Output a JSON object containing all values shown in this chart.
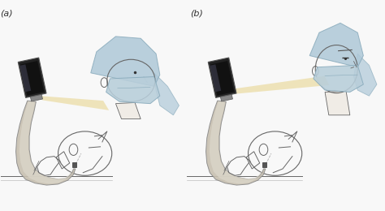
{
  "background_color": "#f8f8f8",
  "label_a": "(a)",
  "label_b": "(b)",
  "label_fontsize": 8,
  "label_color": "#333333",
  "fig_width": 4.74,
  "fig_height": 2.6,
  "dpi": 100,
  "head_cap_color": "#aec8d8",
  "head_cap_edge": "#88aabb",
  "mask_color": "#b8ceda",
  "face_color": "#f0ece6",
  "face_edge": "#888888",
  "beam_color": "#ede0b0",
  "beam_alpha": 0.85,
  "scope_body_color": "#c8c0b0",
  "scope_body_edge": "#888888",
  "scope_inner_color": "#ddd8cc",
  "screen_color": "#1a1a1a",
  "screen_edge": "#444444",
  "line_color": "#666666",
  "patient_skin": "#f5f0ea",
  "patient_edge": "#888888"
}
